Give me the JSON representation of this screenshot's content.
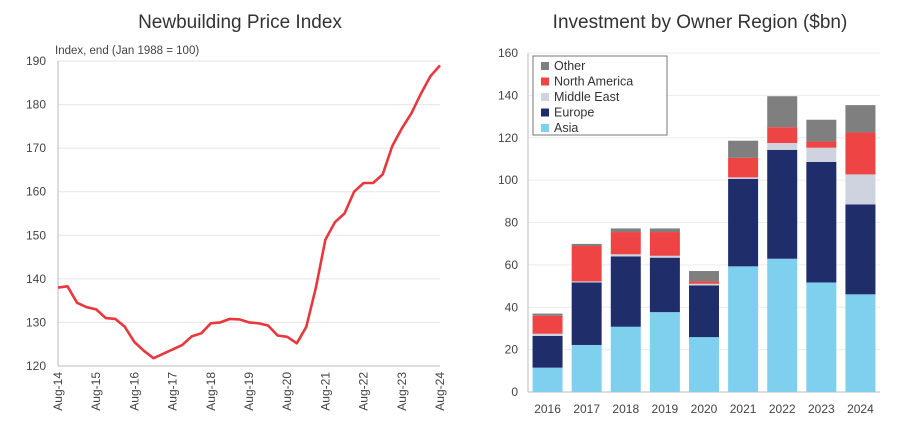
{
  "chart_data": [
    {
      "type": "line",
      "title": "Newbuilding Price Index",
      "subtitle": "Index, end (Jan 1988 = 100)",
      "xlabel": "",
      "ylabel": "",
      "ylim": [
        120,
        190
      ],
      "yticks": [
        "120",
        "130",
        "140",
        "150",
        "160",
        "170",
        "180",
        "190"
      ],
      "xtick_labels": [
        "Aug-14",
        "Aug-15",
        "Aug-16",
        "Aug-17",
        "Aug-18",
        "Aug-19",
        "Aug-20",
        "Aug-21",
        "Aug-22",
        "Aug-23",
        "Aug-24"
      ],
      "grid": true,
      "color": "#e8383d",
      "x_quarters_from_aug14": [
        0,
        1,
        2,
        3,
        4,
        5,
        6,
        7,
        8,
        9,
        10,
        11,
        12,
        13,
        14,
        15,
        16,
        17,
        18,
        19,
        20,
        21,
        22,
        23,
        24,
        25,
        26,
        27,
        28,
        29,
        30,
        31,
        32,
        33,
        34,
        35,
        36,
        37,
        38,
        39,
        40
      ],
      "values": [
        138,
        138.3,
        134.5,
        133.5,
        133,
        131,
        130.8,
        129,
        125.5,
        123.5,
        121.8,
        122.8,
        123.8,
        124.8,
        126.8,
        127.5,
        129.8,
        130,
        130.8,
        130.7,
        130,
        129.8,
        129.3,
        127,
        126.7,
        125.2,
        129,
        138,
        149,
        153,
        155,
        160,
        162,
        162,
        164,
        170.5,
        174.5,
        178,
        182.5,
        186.5,
        189
      ]
    },
    {
      "type": "bar",
      "stacked": true,
      "title": "Investment by Owner Region ($bn)",
      "xlabel": "",
      "ylabel": "",
      "ylim": [
        0,
        160
      ],
      "yticks": [
        "0",
        "20",
        "40",
        "60",
        "80",
        "100",
        "120",
        "140",
        "160"
      ],
      "grid": true,
      "legend_placement": "top-left",
      "categories": [
        "2016",
        "2017",
        "2018",
        "2019",
        "2020",
        "2021",
        "2022",
        "2023",
        "2024"
      ],
      "series": [
        {
          "name": "Asia",
          "color": "#7fd0ee",
          "values": [
            11.5,
            22.2,
            30.8,
            37.7,
            25.9,
            59.3,
            62.9,
            51.7,
            46.1
          ]
        },
        {
          "name": "Europe",
          "color": "#1f2d6b",
          "values": [
            15,
            29.5,
            33.2,
            25.7,
            24.4,
            41.3,
            51.4,
            56.9,
            42.4
          ]
        },
        {
          "name": "Middle East",
          "color": "#cfd3e0",
          "values": [
            1,
            0.5,
            1,
            0.9,
            0.8,
            0.7,
            3.2,
            6.7,
            14.2
          ]
        },
        {
          "name": "North America",
          "color": "#ef4444",
          "values": [
            8.5,
            16.7,
            10.5,
            11.2,
            1.1,
            9.2,
            7.5,
            2.9,
            19.8
          ]
        },
        {
          "name": "Other",
          "color": "#7f7f7f",
          "values": [
            1,
            1,
            1.7,
            1.7,
            4.9,
            8.1,
            14.6,
            10.3,
            12.9
          ]
        }
      ]
    }
  ]
}
